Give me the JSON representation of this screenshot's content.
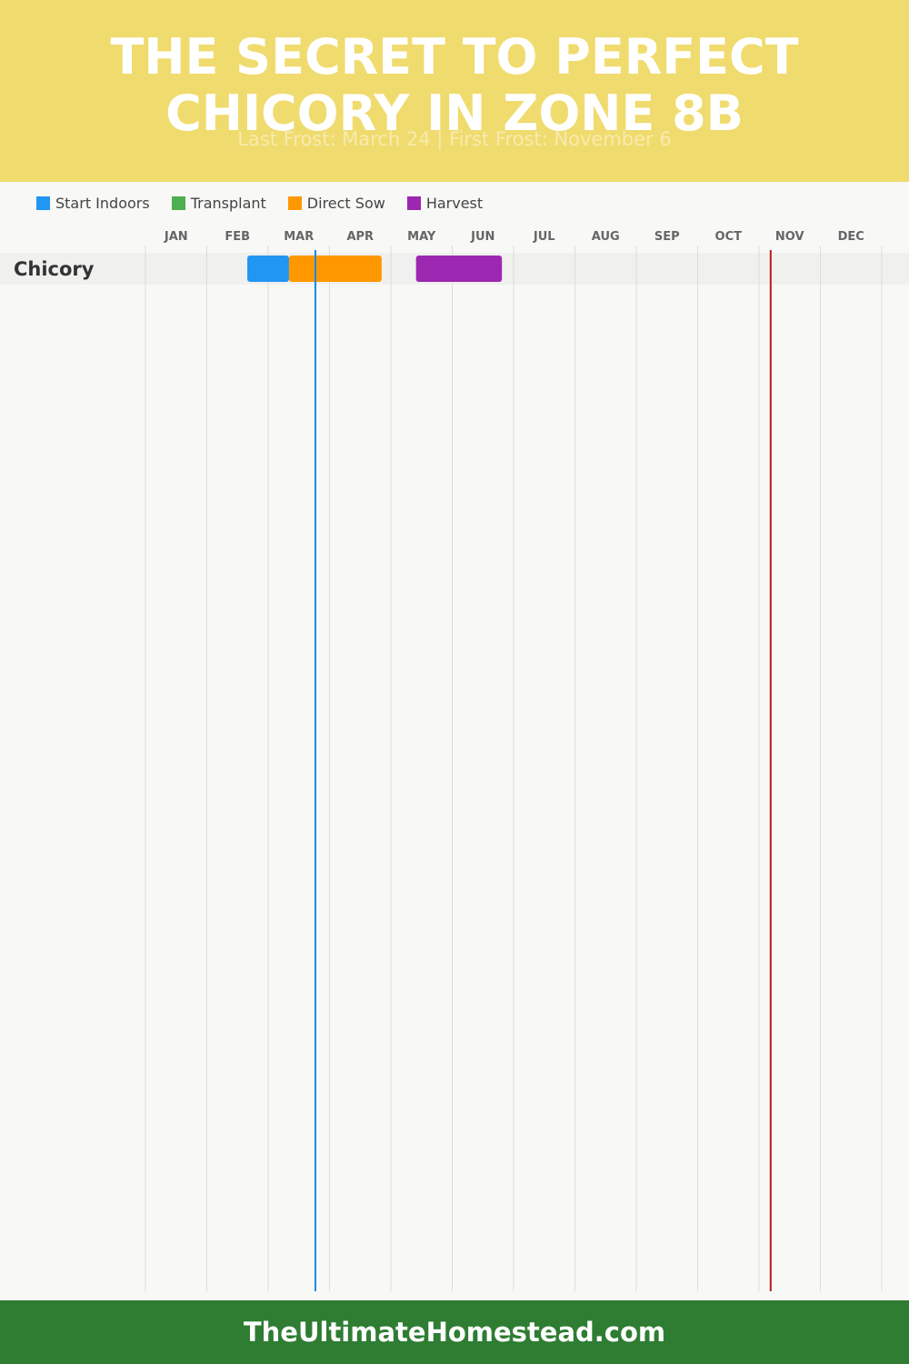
{
  "chart_data": {
    "type": "gantt",
    "title": "THE SECRET TO PERFECT CHICORY IN ZONE 8B",
    "subtitle": "Last Frost: March 24 | First Frost: November 6",
    "months": [
      "JAN",
      "FEB",
      "MAR",
      "APR",
      "MAY",
      "JUN",
      "JUL",
      "AUG",
      "SEP",
      "OCT",
      "NOV",
      "DEC"
    ],
    "xlim": [
      0,
      12
    ],
    "categories": [
      "Chicory"
    ],
    "series": [
      {
        "name": "Start Indoors",
        "color": "#2196f3",
        "start": [
          1.66
        ],
        "end": [
          2.34
        ]
      },
      {
        "name": "Transplant",
        "color": "#4caf50",
        "start": [
          null
        ],
        "end": [
          null
        ]
      },
      {
        "name": "Direct Sow",
        "color": "#ff9800",
        "start": [
          2.34
        ],
        "end": [
          3.85
        ]
      },
      {
        "name": "Harvest",
        "color": "#9c27b0",
        "start": [
          4.41
        ],
        "end": [
          5.81
        ]
      }
    ],
    "markers": [
      {
        "value": 2.77,
        "color": "#1e88e5"
      },
      {
        "value": 10.19,
        "color": "#b71c1c"
      }
    ],
    "footer": "TheUltimateHomestead.com"
  }
}
